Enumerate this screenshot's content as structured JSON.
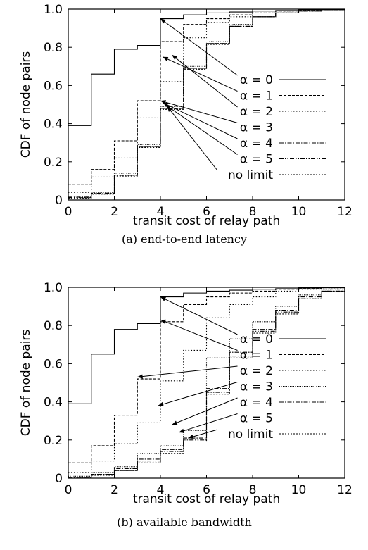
{
  "chart_data": [
    {
      "type": "line",
      "step": true,
      "caption": "(a) end-to-end latency",
      "xlabel": "transit cost of relay path",
      "ylabel": "CDF of node pairs",
      "xlim": [
        0,
        12
      ],
      "ylim": [
        0,
        1
      ],
      "xticks": [
        "0",
        "2",
        "4",
        "6",
        "8",
        "10",
        "12"
      ],
      "yticks": [
        "0",
        "0.2",
        "0.4",
        "0.6",
        "0.8",
        "1.0"
      ],
      "grid": false,
      "legend_position": "right",
      "series": [
        {
          "name": "α = 0",
          "dash": "solid",
          "x": [
            0,
            1,
            2,
            3,
            4,
            5,
            6,
            7,
            8,
            9,
            10,
            11,
            12
          ],
          "y": [
            0.39,
            0.66,
            0.79,
            0.81,
            0.95,
            0.97,
            0.98,
            0.985,
            0.99,
            0.993,
            0.996,
            0.998,
            1.0
          ]
        },
        {
          "name": "α = 1",
          "dash": "dashed",
          "x": [
            0,
            1,
            2,
            3,
            4,
            5,
            6,
            7,
            8,
            9,
            10,
            11,
            12
          ],
          "y": [
            0.08,
            0.16,
            0.31,
            0.52,
            0.83,
            0.92,
            0.95,
            0.97,
            0.98,
            0.99,
            0.995,
            0.998,
            1.0
          ]
        },
        {
          "name": "α = 2",
          "dash": "dotted",
          "x": [
            0,
            1,
            2,
            3,
            4,
            5,
            6,
            7,
            8,
            9,
            10,
            11,
            12
          ],
          "y": [
            0.04,
            0.12,
            0.22,
            0.43,
            0.62,
            0.85,
            0.93,
            0.96,
            0.98,
            0.99,
            0.995,
            0.998,
            1.0
          ]
        },
        {
          "name": "α = 3",
          "dash": "densedot",
          "x": [
            0,
            1,
            2,
            3,
            4,
            5,
            6,
            7,
            8,
            9,
            10,
            11,
            12
          ],
          "y": [
            0.02,
            0.04,
            0.14,
            0.29,
            0.49,
            0.7,
            0.83,
            0.92,
            0.96,
            0.98,
            0.99,
            0.997,
            1.0
          ]
        },
        {
          "name": "α = 4",
          "dash": "dashdot",
          "x": [
            0,
            1,
            2,
            3,
            4,
            5,
            6,
            7,
            8,
            9,
            10,
            11,
            12
          ],
          "y": [
            0.015,
            0.035,
            0.13,
            0.28,
            0.48,
            0.69,
            0.82,
            0.91,
            0.96,
            0.98,
            0.99,
            0.997,
            1.0
          ]
        },
        {
          "name": "α = 5",
          "dash": "dashdotdot",
          "x": [
            0,
            1,
            2,
            3,
            4,
            5,
            6,
            7,
            8,
            9,
            10,
            11,
            12
          ],
          "y": [
            0.012,
            0.032,
            0.13,
            0.28,
            0.48,
            0.69,
            0.82,
            0.91,
            0.96,
            0.98,
            0.99,
            0.997,
            1.0
          ]
        },
        {
          "name": "no limit",
          "dash": "finedash",
          "x": [
            0,
            1,
            2,
            3,
            4,
            5,
            6,
            7,
            8,
            9,
            10,
            11,
            12
          ],
          "y": [
            0.01,
            0.03,
            0.125,
            0.275,
            0.475,
            0.685,
            0.815,
            0.91,
            0.96,
            0.98,
            0.99,
            0.997,
            1.0
          ]
        }
      ]
    },
    {
      "type": "line",
      "step": true,
      "caption": "(b) available bandwidth",
      "xlabel": "transit cost of relay path",
      "ylabel": "CDF of node pairs",
      "xlim": [
        0,
        12
      ],
      "ylim": [
        0,
        1
      ],
      "xticks": [
        "0",
        "2",
        "4",
        "6",
        "8",
        "10",
        "12"
      ],
      "yticks": [
        "0",
        "0.2",
        "0.4",
        "0.6",
        "0.8",
        "1.0"
      ],
      "grid": false,
      "legend_position": "right",
      "series": [
        {
          "name": "α = 0",
          "dash": "solid",
          "x": [
            0,
            1,
            2,
            3,
            4,
            5,
            6,
            7,
            8,
            9,
            10,
            11,
            12
          ],
          "y": [
            0.39,
            0.65,
            0.78,
            0.81,
            0.95,
            0.97,
            0.98,
            0.985,
            0.99,
            0.993,
            0.996,
            0.998,
            1.0
          ]
        },
        {
          "name": "α = 1",
          "dash": "dashed",
          "x": [
            0,
            1,
            2,
            3,
            4,
            5,
            6,
            7,
            8,
            9,
            10,
            11,
            12
          ],
          "y": [
            0.08,
            0.17,
            0.33,
            0.52,
            0.82,
            0.91,
            0.95,
            0.97,
            0.98,
            0.99,
            0.995,
            0.998,
            1.0
          ]
        },
        {
          "name": "α = 2",
          "dash": "dotted",
          "x": [
            0,
            1,
            2,
            3,
            4,
            5,
            6,
            7,
            8,
            9,
            10,
            11,
            12
          ],
          "y": [
            0.03,
            0.09,
            0.18,
            0.29,
            0.51,
            0.67,
            0.84,
            0.91,
            0.95,
            0.98,
            0.99,
            0.997,
            1.0
          ]
        },
        {
          "name": "α = 3",
          "dash": "densedot",
          "x": [
            0,
            1,
            2,
            3,
            4,
            5,
            6,
            7,
            8,
            9,
            10,
            11,
            12
          ],
          "y": [
            0.01,
            0.03,
            0.06,
            0.13,
            0.17,
            0.25,
            0.63,
            0.73,
            0.82,
            0.9,
            0.96,
            0.99,
            1.0
          ]
        },
        {
          "name": "α = 4",
          "dash": "dashdot",
          "x": [
            0,
            1,
            2,
            3,
            4,
            5,
            6,
            7,
            8,
            9,
            10,
            11,
            12
          ],
          "y": [
            0.005,
            0.02,
            0.05,
            0.1,
            0.15,
            0.21,
            0.47,
            0.66,
            0.78,
            0.88,
            0.95,
            0.98,
            1.0
          ]
        },
        {
          "name": "α = 5",
          "dash": "dashdotdot",
          "x": [
            0,
            1,
            2,
            3,
            4,
            5,
            6,
            7,
            8,
            9,
            10,
            11,
            12
          ],
          "y": [
            0.005,
            0.02,
            0.04,
            0.09,
            0.14,
            0.2,
            0.45,
            0.64,
            0.77,
            0.87,
            0.94,
            0.98,
            1.0
          ]
        },
        {
          "name": "no limit",
          "dash": "finedash",
          "x": [
            0,
            1,
            2,
            3,
            4,
            5,
            6,
            7,
            8,
            9,
            10,
            11,
            12
          ],
          "y": [
            0.005,
            0.015,
            0.04,
            0.08,
            0.13,
            0.19,
            0.44,
            0.63,
            0.76,
            0.86,
            0.94,
            0.98,
            1.0
          ]
        }
      ]
    }
  ]
}
